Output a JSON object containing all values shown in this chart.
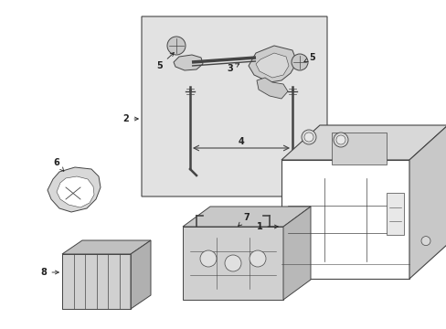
{
  "background_color": "#ffffff",
  "fig_width": 4.89,
  "fig_height": 3.6,
  "dpi": 100,
  "line_color": "#444444",
  "fill_box": "#e8e8e8",
  "fill_light": "#d8d8d8",
  "fill_mid": "#c8c8c8",
  "fill_dark": "#b8b8b8"
}
